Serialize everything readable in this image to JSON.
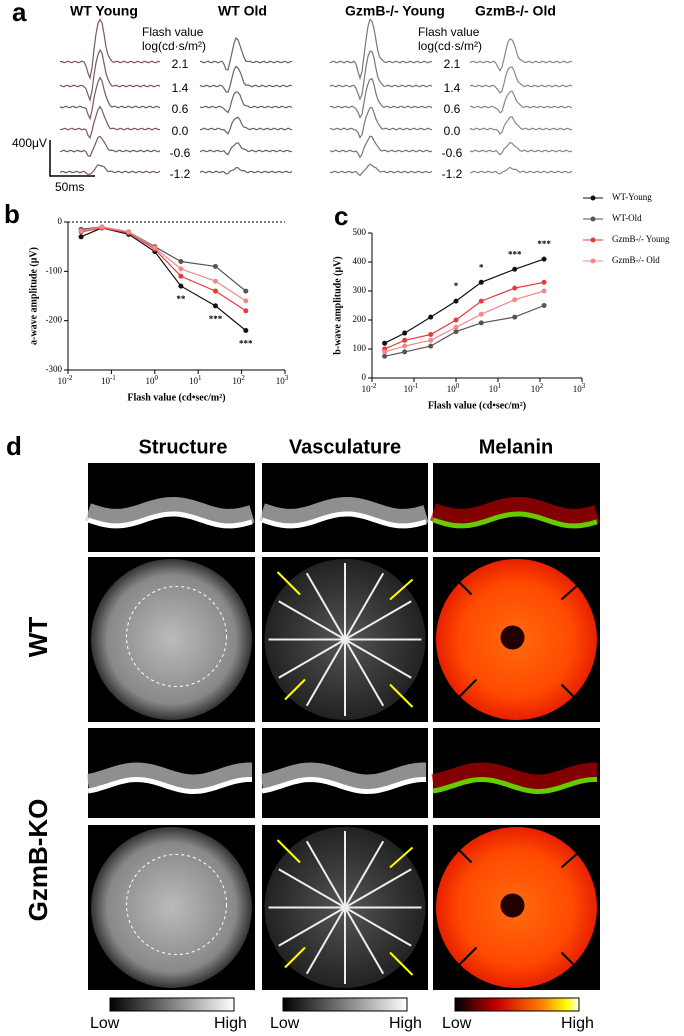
{
  "panel_labels": [
    "a",
    "b",
    "c",
    "d"
  ],
  "panel_a": {
    "conditions": [
      "WT Young",
      "WT Old",
      "GzmB-/- Young",
      "GzmB-/- Old"
    ],
    "flash_title": "Flash value",
    "flash_unit": "log(cd·s/m²)",
    "flash_values": [
      "2.1",
      "1.4",
      "0.6",
      "0.0",
      "-0.6",
      "-1.2"
    ],
    "scale_amplitude": "400μV",
    "scale_time": "50ms"
  },
  "chart_data": [
    {
      "type": "line",
      "x_label": "Flash value (cd•sec/m²)",
      "y_label": "a-wave amplitude (μV)",
      "log_x": true,
      "zero_line": true,
      "x": [
        0.02,
        0.06,
        0.25,
        1,
        4,
        25,
        125
      ],
      "xlim": [
        0.01,
        1000
      ],
      "xticks": [
        {
          "value": 0.01,
          "label": "10",
          "power": "-2"
        },
        {
          "value": 0.1,
          "label": "10",
          "power": "-1"
        },
        {
          "value": 1,
          "label": "10",
          "power": "0"
        },
        {
          "value": 10,
          "label": "10",
          "power": "1"
        },
        {
          "value": 100,
          "label": "10",
          "power": "2"
        },
        {
          "value": 1000,
          "label": "10",
          "power": "3"
        }
      ],
      "ylim": [
        -300,
        0
      ],
      "yticks": [
        -300,
        -200,
        -100,
        0
      ],
      "series": [
        {
          "name": "WT-Young",
          "color": "#111111",
          "values": [
            -30,
            -12,
            -25,
            -60,
            -130,
            -170,
            -220
          ]
        },
        {
          "name": "WT-Old",
          "color": "#555555",
          "values": [
            -15,
            -10,
            -20,
            -50,
            -80,
            -90,
            -140
          ]
        },
        {
          "name": "GzmB-/- Young",
          "color": "#e83a3a",
          "values": [
            -20,
            -12,
            -22,
            -55,
            -110,
            -140,
            -180
          ]
        },
        {
          "name": "GzmB-/- Old",
          "color": "#f08a8a",
          "values": [
            -18,
            -10,
            -20,
            -52,
            -95,
            -120,
            -160
          ]
        }
      ],
      "annotations": [
        {
          "text": "**",
          "x": 4
        },
        {
          "text": "***",
          "x": 25
        },
        {
          "text": "***",
          "x": 125
        }
      ]
    },
    {
      "type": "line",
      "x_label": "Flash value (cd•sec/m²)",
      "y_label": "b-wave amplitude (μV)",
      "log_x": true,
      "legend": "right",
      "x": [
        0.02,
        0.06,
        0.25,
        1,
        4,
        25,
        125
      ],
      "xlim": [
        0.01,
        1000
      ],
      "xticks": [
        {
          "value": 0.01,
          "label": "10",
          "power": "-2"
        },
        {
          "value": 0.1,
          "label": "10",
          "power": "-1"
        },
        {
          "value": 1,
          "label": "10",
          "power": "0"
        },
        {
          "value": 10,
          "label": "10",
          "power": "1"
        },
        {
          "value": 100,
          "label": "10",
          "power": "2"
        },
        {
          "value": 1000,
          "label": "10",
          "power": "3"
        }
      ],
      "ylim": [
        0,
        500
      ],
      "yticks": [
        0,
        100,
        200,
        300,
        400,
        500
      ],
      "series": [
        {
          "name": "WT-Young",
          "color": "#111111",
          "values": [
            120,
            155,
            210,
            265,
            330,
            375,
            410
          ]
        },
        {
          "name": "WT-Old",
          "color": "#555555",
          "values": [
            75,
            90,
            110,
            160,
            190,
            210,
            250
          ]
        },
        {
          "name": "GzmB-/- Young",
          "color": "#e83a3a",
          "values": [
            100,
            130,
            150,
            200,
            265,
            310,
            330
          ]
        },
        {
          "name": "GzmB-/- Old",
          "color": "#f08a8a",
          "values": [
            90,
            110,
            130,
            175,
            220,
            270,
            300
          ]
        }
      ],
      "annotations": [
        {
          "text": "*",
          "x": 1
        },
        {
          "text": "*",
          "x": 4
        },
        {
          "text": "***",
          "x": 25
        },
        {
          "text": "***",
          "x": 125
        }
      ]
    }
  ],
  "panel_d": {
    "columns": [
      "Structure",
      "Vasculature",
      "Melanin"
    ],
    "rows": [
      "WT",
      "GzmB-KO"
    ],
    "colorbar_low": "Low",
    "colorbar_high": "High"
  }
}
